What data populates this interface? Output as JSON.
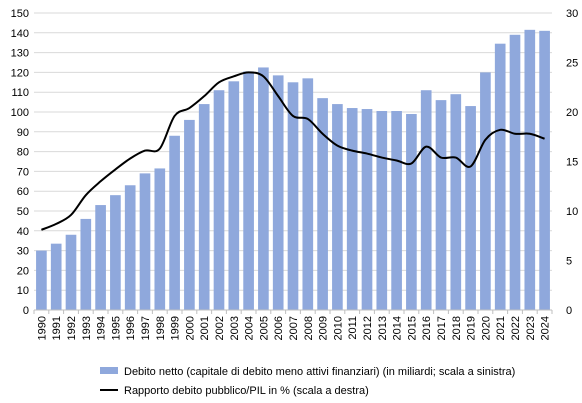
{
  "chart_data": {
    "type": "bar",
    "categories": [
      "1990",
      "1991",
      "1992",
      "1993",
      "1994",
      "1995",
      "1996",
      "1997",
      "1998",
      "1999",
      "2000",
      "2001",
      "2002",
      "2003",
      "2004",
      "2005",
      "2006",
      "2007",
      "2008",
      "2009",
      "2010",
      "2011",
      "2012",
      "2013",
      "2014",
      "2015",
      "2016",
      "2017",
      "2018",
      "2019",
      "2020",
      "2021",
      "2022",
      "2023",
      "2024"
    ],
    "series": [
      {
        "name": "Debito netto (capitale di debito meno attivi finanziari) (in miliardi; scala a sinistra)",
        "kind": "bar",
        "axis": "left",
        "color": "#8FA8DC",
        "values": [
          30,
          33.5,
          38,
          46,
          53,
          58,
          63,
          69,
          71.5,
          88,
          96,
          104,
          111,
          115.5,
          120.5,
          122.5,
          118.5,
          115,
          117,
          107,
          104,
          102,
          101.5,
          100.5,
          100.5,
          99,
          111,
          106,
          109,
          103,
          120,
          134.5,
          139,
          141.5,
          141
        ]
      },
      {
        "name": "Rapporto debito pubblico/PIL in % (scala a destra)",
        "kind": "line",
        "axis": "right",
        "color": "#000000",
        "values": [
          8.1,
          8.7,
          9.6,
          11.6,
          13.0,
          14.2,
          15.3,
          16.1,
          16.3,
          19.6,
          20.4,
          21.6,
          23.0,
          23.6,
          24.0,
          23.6,
          21.6,
          19.6,
          19.3,
          17.8,
          16.6,
          16.1,
          15.8,
          15.4,
          15.1,
          14.8,
          16.5,
          15.4,
          15.4,
          14.5,
          17.2,
          18.2,
          17.8,
          17.8,
          17.3
        ]
      }
    ],
    "y_left": {
      "min": 0,
      "max": 150,
      "step": 10
    },
    "y_right": {
      "min": 0,
      "max": 30,
      "step": 5
    },
    "grid": true,
    "legend_position": "bottom"
  }
}
